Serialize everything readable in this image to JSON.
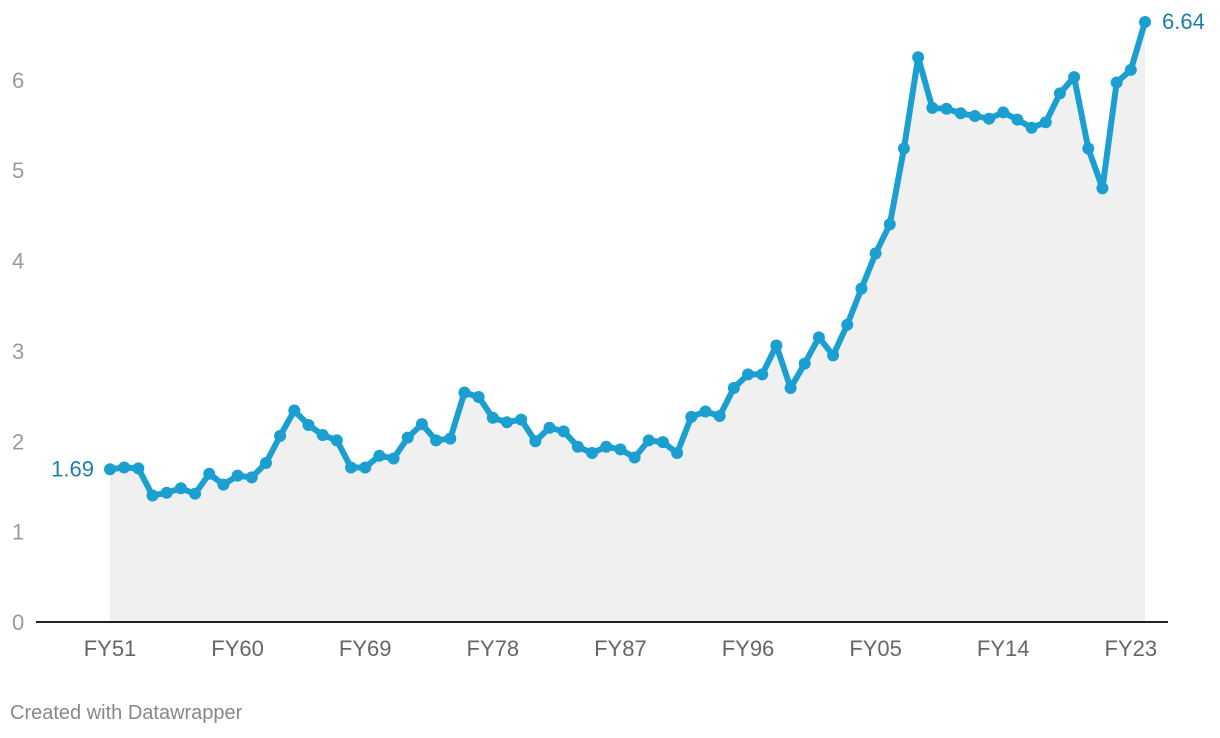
{
  "chart_data": {
    "type": "area",
    "title": "",
    "xlabel": "",
    "ylabel": "",
    "ylim": [
      0,
      6.64
    ],
    "yticks": [
      "0",
      "1",
      "2",
      "3",
      "4",
      "5",
      "6"
    ],
    "xticks": [
      "FY51",
      "FY60",
      "FY69",
      "FY78",
      "FY87",
      "FY96",
      "FY05",
      "FY14",
      "FY23"
    ],
    "grid": false,
    "line_color": "#1a9fd0",
    "fill_color": "#f0f0f0",
    "label_color": "#1a7fa6",
    "series": [
      {
        "x_start": 1951,
        "values": [
          1.69,
          1.71,
          1.7,
          1.4,
          1.43,
          1.48,
          1.42,
          1.64,
          1.52,
          1.62,
          1.6,
          1.76,
          2.06,
          2.34,
          2.18,
          2.07,
          2.01,
          1.71,
          1.71,
          1.84,
          1.81,
          2.04,
          2.19,
          2.01,
          2.03,
          2.54,
          2.49,
          2.26,
          2.21,
          2.24,
          2.0,
          2.15,
          2.11,
          1.94,
          1.87,
          1.94,
          1.91,
          1.82,
          2.01,
          1.99,
          1.87,
          2.27,
          2.33,
          2.28,
          2.59,
          2.74,
          2.74,
          3.06,
          2.59,
          2.86,
          3.15,
          2.95,
          3.29,
          3.69,
          4.08,
          4.4,
          5.24,
          6.25,
          5.69,
          5.68,
          5.63,
          5.6,
          5.57,
          5.64,
          5.56,
          5.47,
          5.53,
          5.85,
          6.03,
          5.24,
          4.8,
          5.97,
          6.11,
          6.64
        ]
      }
    ],
    "labels": {
      "first": "1.69",
      "last": "6.64"
    }
  },
  "footer": {
    "credit": "Created with Datawrapper"
  }
}
